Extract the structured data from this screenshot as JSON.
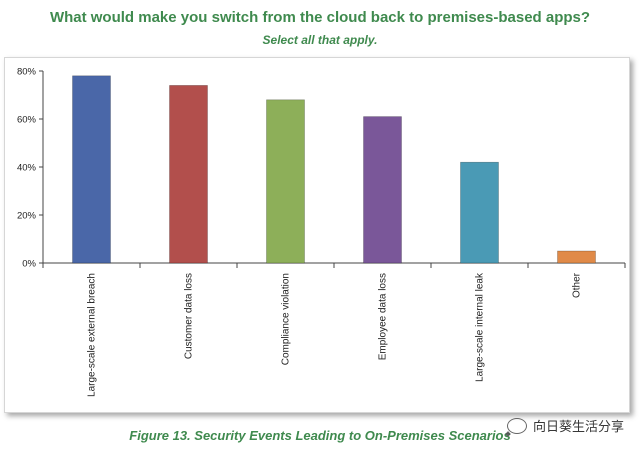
{
  "header": {
    "title": "What would make you switch from the cloud back to premises-based apps?",
    "subtitle": "Select all that apply."
  },
  "caption": "Figure 13. Security Events Leading to On-Premises Scenarios",
  "watermark": {
    "text": "向日葵生活分享",
    "icon": "chat-bubble-icon"
  },
  "chart_data": {
    "type": "bar",
    "categories": [
      "Large-scale external breach",
      "Customer data loss",
      "Compliance violation",
      "Employee data loss",
      "Large-scale internal leak",
      "Other"
    ],
    "values": [
      78,
      74,
      68,
      61,
      42,
      5
    ],
    "colors": [
      "#4a67a8",
      "#b24f4c",
      "#8daf59",
      "#7a5799",
      "#4a9ab5",
      "#e08a48"
    ],
    "ylim": [
      0,
      80
    ],
    "yticks": [
      "0%",
      "20%",
      "40%",
      "60%",
      "80%"
    ],
    "grid": false,
    "legend": "none"
  }
}
